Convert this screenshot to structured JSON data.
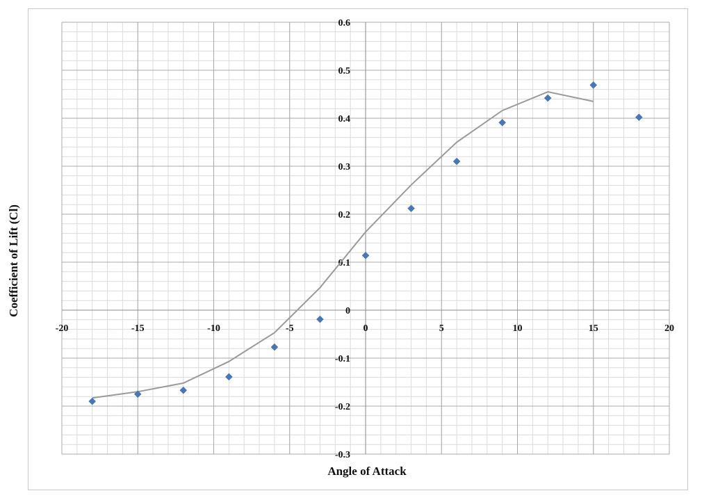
{
  "chart_data": {
    "type": "scatter",
    "xlabel": "Angle of Attack",
    "ylabel": "Coefficient of Lift (Cl)",
    "xlim": [
      -20,
      20
    ],
    "ylim": [
      -0.3,
      0.6
    ],
    "x_ticks": [
      -20,
      -15,
      -10,
      -5,
      0,
      5,
      10,
      15,
      20
    ],
    "y_ticks": [
      0.6,
      0.5,
      0.4,
      0.3,
      0.2,
      0.1,
      0,
      -0.1,
      -0.2,
      -0.3
    ],
    "x_tick_labels": [
      "-20",
      "-15",
      "-10",
      "-5",
      "0",
      "5",
      "10",
      "15",
      "20"
    ],
    "y_tick_labels": [
      "0.6",
      "0.5",
      "0.4",
      "0.3",
      "0.2",
      "0.1",
      "0",
      "-0.1",
      "-0.2",
      "-0.3"
    ],
    "grid": true,
    "series": [
      {
        "kind": "markers",
        "marker": "diamond",
        "color": "#4a77b4",
        "x": [
          -18,
          -15,
          -12,
          -9,
          -6,
          -3,
          0,
          3,
          6,
          9,
          12,
          15,
          18
        ],
        "y": [
          -0.19,
          -0.175,
          -0.167,
          -0.139,
          -0.077,
          -0.019,
          0.114,
          0.212,
          0.31,
          0.391,
          0.442,
          0.469,
          0.402
        ]
      },
      {
        "kind": "line",
        "color": "#9a9a9a",
        "x": [
          -18,
          -15,
          -12,
          -9,
          -6,
          -3,
          0,
          3,
          6,
          9,
          12,
          15
        ],
        "y": [
          -0.183,
          -0.17,
          -0.152,
          -0.107,
          -0.047,
          0.047,
          0.163,
          0.261,
          0.35,
          0.416,
          0.455,
          0.435
        ]
      }
    ]
  }
}
